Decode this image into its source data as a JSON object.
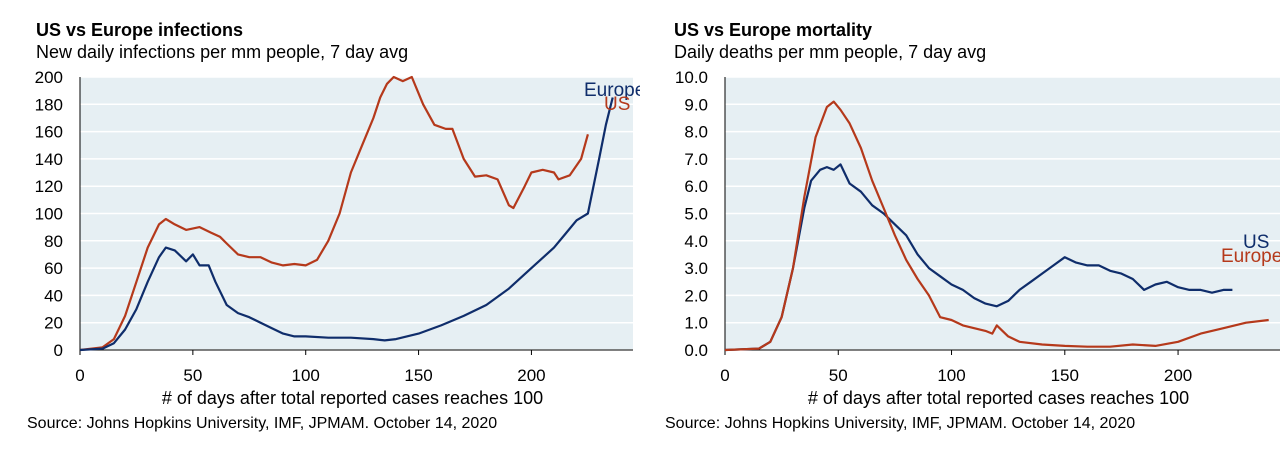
{
  "charts": [
    {
      "title": "US vs Europe infections",
      "subtitle": "New daily infections per mm people, 7 day avg",
      "source": "Source: Johns Hopkins University, IMF, JPMAM. October 14, 2020"
    },
    {
      "title": "US vs Europe mortality",
      "subtitle": "Daily deaths per mm people, 7 day avg",
      "source": "Source: Johns Hopkins University, IMF, JPMAM. October 14, 2020"
    }
  ],
  "colors": {
    "us": "#b5391b",
    "europe": "#0f2d6b",
    "plot_bg": "#e6eff3",
    "grid": "#ffffff"
  },
  "chart_data": [
    {
      "type": "line",
      "title": "US vs Europe infections",
      "subtitle": "New daily infections per mm people, 7 day avg",
      "xlabel": "# of days after total reported cases reaches 100",
      "ylabel": "",
      "xlim": [
        0,
        245
      ],
      "ylim": [
        0,
        200
      ],
      "xticks": [
        "0",
        "50",
        "100",
        "150",
        "200"
      ],
      "yticks": [
        "0",
        "20",
        "40",
        "60",
        "80",
        "100",
        "120",
        "140",
        "160",
        "180",
        "200"
      ],
      "series": [
        {
          "name": "US",
          "label": "US",
          "color": "#b5391b",
          "points": [
            [
              0,
              0
            ],
            [
              10,
              2
            ],
            [
              15,
              8
            ],
            [
              20,
              25
            ],
            [
              25,
              50
            ],
            [
              30,
              75
            ],
            [
              35,
              92
            ],
            [
              38,
              96
            ],
            [
              42,
              92
            ],
            [
              47,
              88
            ],
            [
              53,
              90
            ],
            [
              58,
              86
            ],
            [
              62,
              83
            ],
            [
              65,
              78
            ],
            [
              70,
              70
            ],
            [
              75,
              68
            ],
            [
              80,
              68
            ],
            [
              85,
              64
            ],
            [
              90,
              62
            ],
            [
              95,
              63
            ],
            [
              100,
              62
            ],
            [
              105,
              66
            ],
            [
              110,
              80
            ],
            [
              115,
              100
            ],
            [
              120,
              130
            ],
            [
              125,
              150
            ],
            [
              130,
              170
            ],
            [
              133,
              185
            ],
            [
              136,
              195
            ],
            [
              139,
              200
            ],
            [
              143,
              197
            ],
            [
              147,
              200
            ],
            [
              152,
              180
            ],
            [
              157,
              165
            ],
            [
              162,
              162
            ],
            [
              165,
              162
            ],
            [
              170,
              140
            ],
            [
              175,
              127
            ],
            [
              180,
              128
            ],
            [
              185,
              125
            ],
            [
              190,
              106
            ],
            [
              192,
              104
            ],
            [
              197,
              120
            ],
            [
              200,
              130
            ],
            [
              205,
              132
            ],
            [
              210,
              130
            ],
            [
              212,
              125
            ],
            [
              217,
              128
            ],
            [
              222,
              140
            ],
            [
              225,
              158
            ]
          ]
        },
        {
          "name": "Europe",
          "label": "Europe",
          "color": "#0f2d6b",
          "points": [
            [
              0,
              0
            ],
            [
              10,
              1
            ],
            [
              15,
              5
            ],
            [
              20,
              15
            ],
            [
              25,
              30
            ],
            [
              30,
              50
            ],
            [
              35,
              68
            ],
            [
              38,
              75
            ],
            [
              42,
              73
            ],
            [
              47,
              65
            ],
            [
              50,
              70
            ],
            [
              53,
              62
            ],
            [
              57,
              62
            ],
            [
              60,
              50
            ],
            [
              65,
              33
            ],
            [
              70,
              27
            ],
            [
              75,
              24
            ],
            [
              80,
              20
            ],
            [
              85,
              16
            ],
            [
              90,
              12
            ],
            [
              95,
              10
            ],
            [
              100,
              10
            ],
            [
              110,
              9
            ],
            [
              120,
              9
            ],
            [
              130,
              8
            ],
            [
              135,
              7
            ],
            [
              140,
              8
            ],
            [
              150,
              12
            ],
            [
              160,
              18
            ],
            [
              170,
              25
            ],
            [
              180,
              33
            ],
            [
              190,
              45
            ],
            [
              200,
              60
            ],
            [
              210,
              75
            ],
            [
              215,
              85
            ],
            [
              220,
              95
            ],
            [
              225,
              100
            ],
            [
              230,
              140
            ],
            [
              233,
              165
            ],
            [
              236,
              185
            ]
          ]
        }
      ]
    },
    {
      "type": "line",
      "title": "US vs Europe mortality",
      "subtitle": "Daily deaths per mm people, 7 day avg",
      "xlabel": "# of days after total reported cases reaches 100",
      "ylabel": "",
      "xlim": [
        0,
        245
      ],
      "ylim": [
        0,
        10
      ],
      "xticks": [
        "0",
        "50",
        "100",
        "150",
        "200"
      ],
      "yticks": [
        "0.0",
        "1.0",
        "2.0",
        "3.0",
        "4.0",
        "5.0",
        "6.0",
        "7.0",
        "8.0",
        "9.0",
        "10.0"
      ],
      "series": [
        {
          "name": "US",
          "label": "US",
          "color": "#0f2d6b",
          "points": [
            [
              0,
              0
            ],
            [
              15,
              0.05
            ],
            [
              20,
              0.3
            ],
            [
              25,
              1.2
            ],
            [
              30,
              3
            ],
            [
              35,
              5.2
            ],
            [
              38,
              6.2
            ],
            [
              42,
              6.6
            ],
            [
              45,
              6.7
            ],
            [
              48,
              6.6
            ],
            [
              51,
              6.8
            ],
            [
              55,
              6.1
            ],
            [
              60,
              5.8
            ],
            [
              65,
              5.3
            ],
            [
              70,
              5
            ],
            [
              75,
              4.6
            ],
            [
              80,
              4.2
            ],
            [
              85,
              3.5
            ],
            [
              90,
              3
            ],
            [
              95,
              2.7
            ],
            [
              100,
              2.4
            ],
            [
              105,
              2.2
            ],
            [
              110,
              1.9
            ],
            [
              115,
              1.7
            ],
            [
              120,
              1.6
            ],
            [
              125,
              1.8
            ],
            [
              130,
              2.2
            ],
            [
              135,
              2.5
            ],
            [
              140,
              2.8
            ],
            [
              145,
              3.1
            ],
            [
              150,
              3.4
            ],
            [
              155,
              3.2
            ],
            [
              160,
              3.1
            ],
            [
              165,
              3.1
            ],
            [
              170,
              2.9
            ],
            [
              175,
              2.8
            ],
            [
              180,
              2.6
            ],
            [
              185,
              2.2
            ],
            [
              190,
              2.4
            ],
            [
              195,
              2.5
            ],
            [
              200,
              2.3
            ],
            [
              205,
              2.2
            ],
            [
              210,
              2.2
            ],
            [
              215,
              2.1
            ],
            [
              220,
              2.2
            ],
            [
              224,
              2.2
            ]
          ]
        },
        {
          "name": "Europe",
          "label": "Europe",
          "color": "#b5391b",
          "points": [
            [
              0,
              0
            ],
            [
              15,
              0.05
            ],
            [
              20,
              0.3
            ],
            [
              25,
              1.2
            ],
            [
              30,
              3
            ],
            [
              35,
              5.6
            ],
            [
              40,
              7.8
            ],
            [
              45,
              8.9
            ],
            [
              48,
              9.1
            ],
            [
              51,
              8.8
            ],
            [
              55,
              8.3
            ],
            [
              60,
              7.4
            ],
            [
              65,
              6.2
            ],
            [
              70,
              5.2
            ],
            [
              75,
              4.2
            ],
            [
              80,
              3.3
            ],
            [
              85,
              2.6
            ],
            [
              90,
              2
            ],
            [
              95,
              1.2
            ],
            [
              100,
              1.1
            ],
            [
              105,
              0.9
            ],
            [
              110,
              0.8
            ],
            [
              115,
              0.7
            ],
            [
              118,
              0.6
            ],
            [
              120,
              0.9
            ],
            [
              125,
              0.5
            ],
            [
              130,
              0.3
            ],
            [
              140,
              0.2
            ],
            [
              150,
              0.15
            ],
            [
              160,
              0.12
            ],
            [
              170,
              0.12
            ],
            [
              180,
              0.2
            ],
            [
              190,
              0.15
            ],
            [
              200,
              0.3
            ],
            [
              210,
              0.6
            ],
            [
              220,
              0.8
            ],
            [
              230,
              1.0
            ],
            [
              240,
              1.1
            ]
          ]
        }
      ]
    }
  ]
}
